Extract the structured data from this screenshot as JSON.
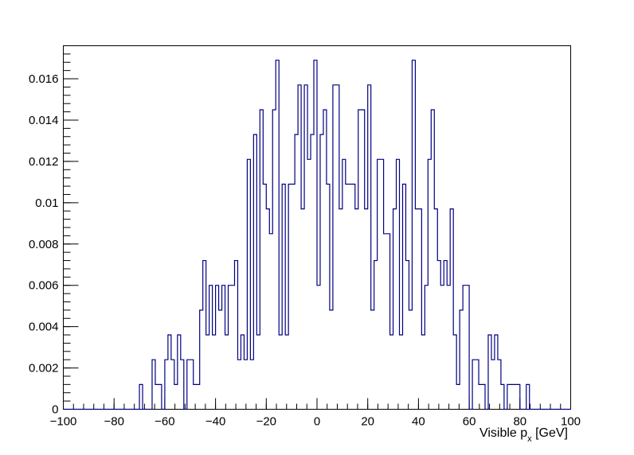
{
  "chart_data": {
    "type": "histogram",
    "title": "",
    "xlabel": "Visible p",
    "xlabel_subscript": "x",
    "xlabel_unit": " [GeV]",
    "ylabel": "",
    "xlim": [
      -100,
      100
    ],
    "ylim": [
      0,
      0.0176
    ],
    "bin_width": 1.25,
    "x_ticks": [
      -100,
      -80,
      -60,
      -40,
      -20,
      0,
      20,
      40,
      60,
      80,
      100
    ],
    "x_tick_labels": [
      "−100",
      "−80",
      "−60",
      "−40",
      "−20",
      "0",
      "20",
      "40",
      "60",
      "80",
      "100"
    ],
    "y_ticks": [
      0,
      0.002,
      0.004,
      0.006,
      0.008,
      0.01,
      0.012,
      0.014,
      0.016
    ],
    "y_tick_labels": [
      "0",
      "0.002",
      "0.004",
      "0.006",
      "0.008",
      "0.01",
      "0.012",
      "0.014",
      "0.016"
    ],
    "line_color": "#000080",
    "grid": false,
    "legend": "none",
    "x_start": -70,
    "values": [
      0.0012,
      0,
      0,
      0,
      0.0024,
      0.0012,
      0.0012,
      0,
      0.0024,
      0.0036,
      0.0024,
      0.0012,
      0.0036,
      0.0024,
      0,
      0.0024,
      0.0024,
      0.0012,
      0.0012,
      0.0048,
      0.0072,
      0.0036,
      0.006,
      0.0036,
      0.006,
      0.0048,
      0.006,
      0.0036,
      0.006,
      0.006,
      0.0072,
      0.0024,
      0.0036,
      0.0024,
      0.0121,
      0.0024,
      0.0133,
      0.0036,
      0.0145,
      0.0109,
      0.0097,
      0.0085,
      0.0145,
      0.0169,
      0.0036,
      0.0109,
      0.0036,
      0.0109,
      0.0109,
      0.0133,
      0.0157,
      0.0097,
      0.0157,
      0.0121,
      0.0133,
      0.0169,
      0.006,
      0.0133,
      0.0145,
      0.0109,
      0.0048,
      0.0157,
      0.0157,
      0.0097,
      0.0121,
      0.0109,
      0.0109,
      0.0109,
      0.0097,
      0.0145,
      0.0145,
      0.0097,
      0.0157,
      0.0048,
      0.0072,
      0.0121,
      0.0121,
      0.0085,
      0.0085,
      0.0036,
      0.0097,
      0.0121,
      0.0036,
      0.0109,
      0.0072,
      0.0048,
      0.0169,
      0.0097,
      0.0097,
      0.0036,
      0.006,
      0.0121,
      0.0145,
      0.0097,
      0.0072,
      0.006,
      0.0072,
      0.006,
      0.0097,
      0.0036,
      0.0012,
      0.0048,
      0.006,
      0.006,
      0,
      0.0024,
      0.0024,
      0.0012,
      0.0012,
      0,
      0.0036,
      0.0024,
      0.0036,
      0.0024,
      0.0012,
      0,
      0.0012,
      0.0012,
      0.0012,
      0.0012,
      0,
      0,
      0.0012
    ]
  }
}
